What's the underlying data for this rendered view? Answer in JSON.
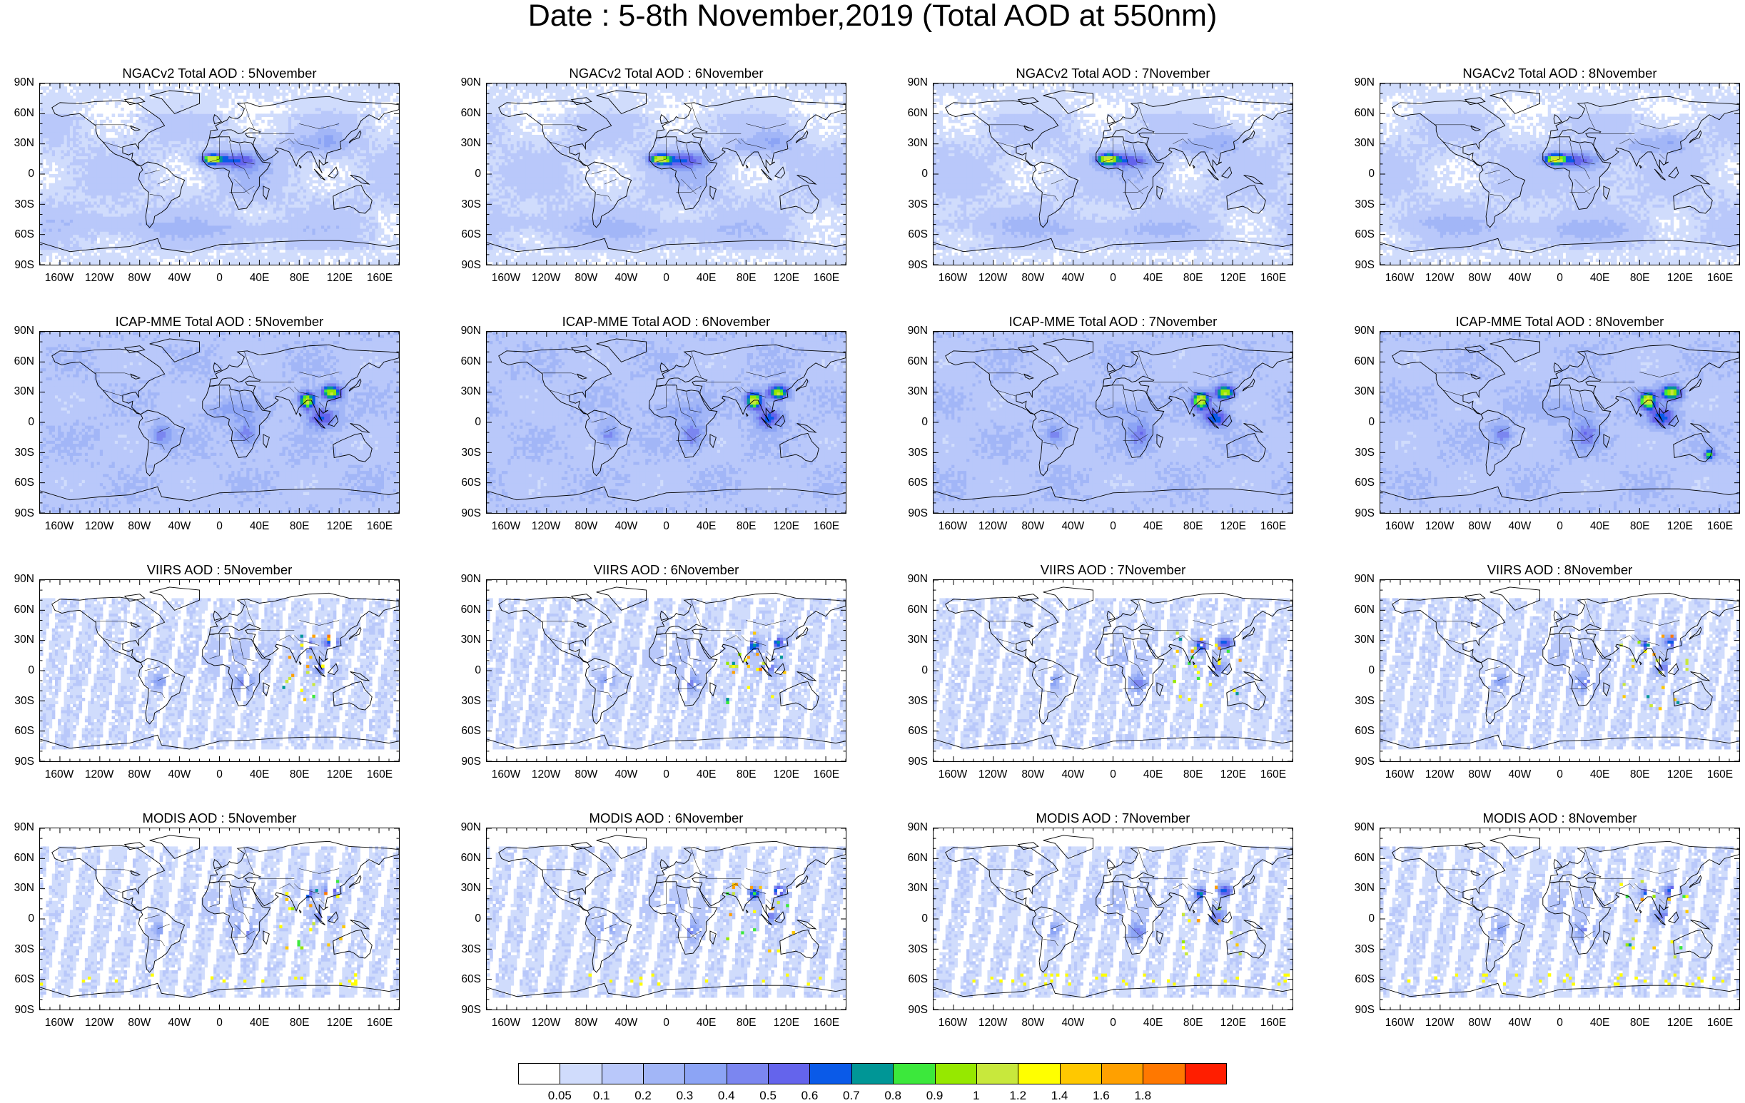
{
  "title": "Date : 5-8th November,2019 (Total AOD at 550nm)",
  "panels": [
    {
      "title": "NGACv2 Total AOD : 5November",
      "row": 0,
      "col": 0,
      "source": "ngac"
    },
    {
      "title": "NGACv2 Total AOD : 6November",
      "row": 0,
      "col": 1,
      "source": "ngac"
    },
    {
      "title": "NGACv2 Total AOD : 7November",
      "row": 0,
      "col": 2,
      "source": "ngac"
    },
    {
      "title": "NGACv2 Total AOD : 8November",
      "row": 0,
      "col": 3,
      "source": "ngac"
    },
    {
      "title": "ICAP-MME Total AOD : 5November",
      "row": 1,
      "col": 0,
      "source": "icap"
    },
    {
      "title": "ICAP-MME Total AOD : 6November",
      "row": 1,
      "col": 1,
      "source": "icap"
    },
    {
      "title": "ICAP-MME Total AOD : 7November",
      "row": 1,
      "col": 2,
      "source": "icap"
    },
    {
      "title": "ICAP-MME Total AOD : 8November",
      "row": 1,
      "col": 3,
      "source": "icap"
    },
    {
      "title": "VIIRS AOD : 5November",
      "row": 2,
      "col": 0,
      "source": "viirs"
    },
    {
      "title": "VIIRS AOD : 6November",
      "row": 2,
      "col": 1,
      "source": "viirs"
    },
    {
      "title": "VIIRS AOD : 7November",
      "row": 2,
      "col": 2,
      "source": "viirs"
    },
    {
      "title": "VIIRS AOD : 8November",
      "row": 2,
      "col": 3,
      "source": "viirs"
    },
    {
      "title": "MODIS AOD : 5November",
      "row": 3,
      "col": 0,
      "source": "modis"
    },
    {
      "title": "MODIS AOD : 6November",
      "row": 3,
      "col": 1,
      "source": "modis"
    },
    {
      "title": "MODIS AOD : 7November",
      "row": 3,
      "col": 2,
      "source": "modis"
    },
    {
      "title": "MODIS AOD : 8November",
      "row": 3,
      "col": 3,
      "source": "modis"
    }
  ],
  "lat_labels": [
    "90N",
    "60N",
    "30N",
    "0",
    "30S",
    "60S",
    "90S"
  ],
  "lon_labels": [
    "160W",
    "120W",
    "80W",
    "40W",
    "0",
    "40E",
    "80E",
    "120E",
    "160E"
  ],
  "colorbar": {
    "labels": [
      "0.05",
      "0.1",
      "0.2",
      "0.3",
      "0.4",
      "0.5",
      "0.6",
      "0.7",
      "0.8",
      "0.9",
      "1",
      "1.2",
      "1.4",
      "1.6",
      "1.8"
    ],
    "colors": [
      "#ffffff",
      "#d0dcfc",
      "#b9c8fa",
      "#a2b6f7",
      "#8ca4f5",
      "#7b86f0",
      "#6464ec",
      "#0a5ae8",
      "#009696",
      "#3ce83c",
      "#96e800",
      "#c8e83c",
      "#ffff00",
      "#ffc800",
      "#ffa000",
      "#ff7800",
      "#ff1e00"
    ]
  },
  "colors": {
    "low": "#d0dcfc",
    "moderate": "#a2b6f7",
    "elevated": "#7b86f0",
    "high_green": "#3ce83c",
    "high_yellow": "#ffff00",
    "extreme_red": "#ff1e00",
    "land_line": "#000000"
  }
}
